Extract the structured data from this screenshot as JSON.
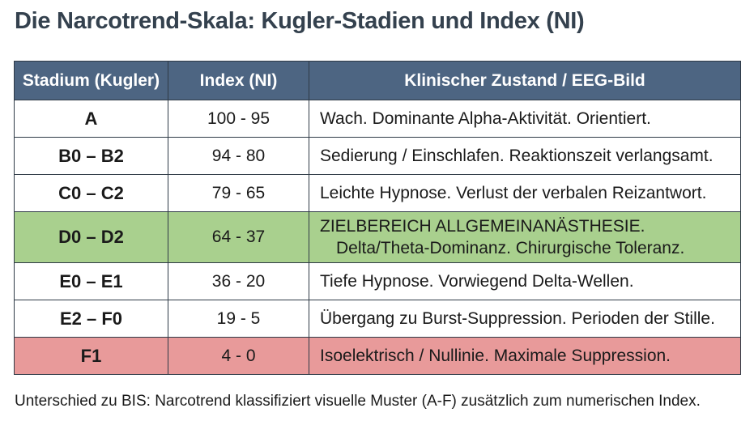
{
  "title": "Die Narcotrend-Skala: Kugler-Stadien und Index (NI)",
  "table": {
    "headers": [
      "Stadium (Kugler)",
      "Index (NI)",
      "Klinischer Zustand / EEG-Bild"
    ],
    "rows": [
      {
        "stage": "A",
        "index": "100 - 95",
        "state": "Wach. Dominante Alpha-Aktivität. Orientiert.",
        "state2": ""
      },
      {
        "stage": "B0 – B2",
        "index": "94 - 80",
        "state": "Sedierung / Einschlafen. Reaktionszeit verlangsamt.",
        "state2": ""
      },
      {
        "stage": "C0 – C2",
        "index": "79 - 65",
        "state": "Leichte Hypnose. Verlust der verbalen Reizantwort.",
        "state2": ""
      },
      {
        "stage": "D0 – D2",
        "index": "64 - 37",
        "state": "ZIELBEREICH ALLGEMEINANÄSTHESIE.",
        "state2": "Delta/Theta-Dominanz. Chirurgische Toleranz."
      },
      {
        "stage": "E0 – E1",
        "index": "36 - 20",
        "state": "Tiefe Hypnose. Vorwiegend Delta-Wellen.",
        "state2": ""
      },
      {
        "stage": "E2 – F0",
        "index": "19 - 5",
        "state": "Übergang zu Burst-Suppression. Perioden der Stille.",
        "state2": ""
      },
      {
        "stage": "F1",
        "index": "4 - 0",
        "state": "Isoelektrisch / Nullinie. Maximale Suppression.",
        "state2": ""
      }
    ]
  },
  "footnote": "Unterschied zu BIS: Narcotrend klassifiziert visuelle Muster (A-F) zusätzlich zum numerischen Index.",
  "colors": {
    "header_bg": "#4d6582",
    "target_row_bg": "#a9d08e",
    "isoelectric_row_bg": "#e89a9a",
    "title_color": "#34414e"
  }
}
